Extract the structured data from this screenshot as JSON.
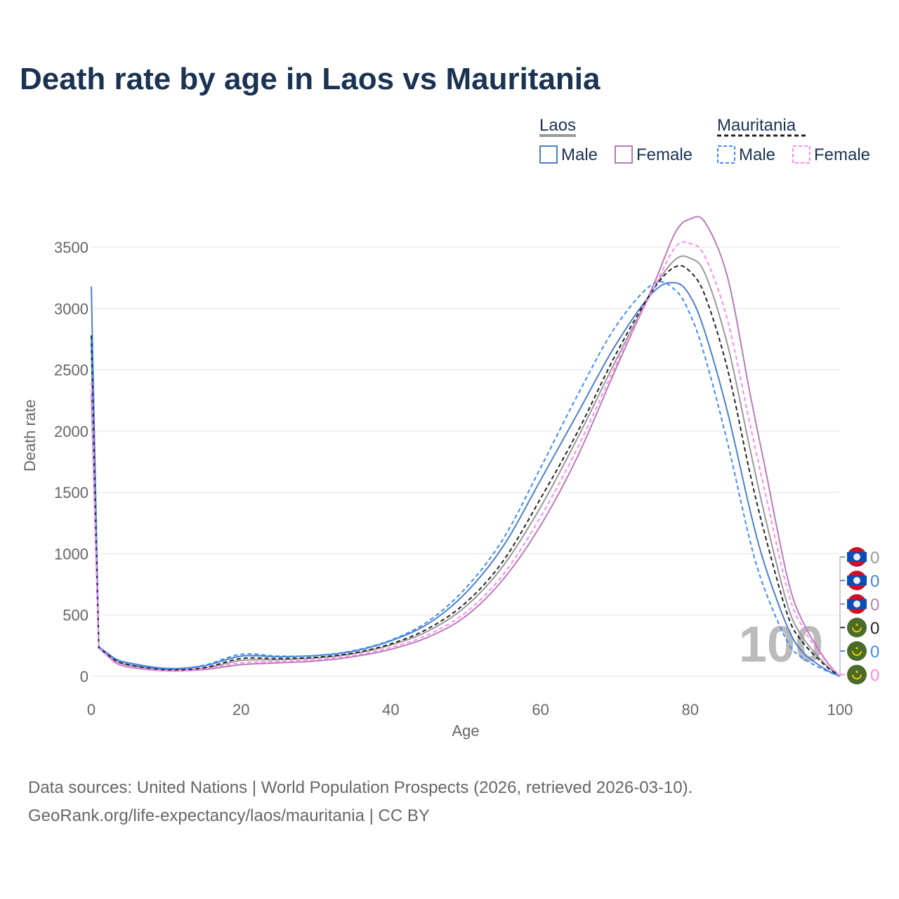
{
  "title": "Death rate by age in Laos vs Mauritania",
  "legend": {
    "groups": [
      {
        "name": "Laos",
        "items": [
          "Male",
          "Female"
        ]
      },
      {
        "name": "Mauritania",
        "items": [
          "Male",
          "Female"
        ]
      }
    ]
  },
  "source_line1": "Data sources: United Nations | World Population Prospects (2026, retrieved 2026-03-10).",
  "source_line2": "GeoRank.org/life-expectancy/laos/mauritania | CC BY",
  "current_age_label": "100",
  "chart_data": {
    "type": "line",
    "title": "Death rate by age in Laos vs Mauritania",
    "xlabel": "Age",
    "ylabel": "Death rate",
    "xlim": [
      0,
      100
    ],
    "ylim": [
      0,
      3700
    ],
    "xticks": [
      0,
      20,
      40,
      60,
      80,
      100
    ],
    "yticks": [
      0,
      500,
      1000,
      1500,
      2000,
      2500,
      3000,
      3500
    ],
    "grid": true,
    "x": [
      0,
      1,
      3,
      5,
      10,
      15,
      20,
      25,
      30,
      35,
      40,
      45,
      50,
      55,
      60,
      65,
      70,
      75,
      78,
      80,
      82,
      85,
      88,
      90,
      93,
      95,
      98,
      100
    ],
    "series": [
      {
        "name": "Laos",
        "color": "#999999",
        "dash": false,
        "flag": "laos",
        "end_label": "0",
        "values": [
          2700,
          235,
          135,
          90,
          55,
          65,
          130,
          135,
          150,
          185,
          255,
          370,
          570,
          900,
          1380,
          1950,
          2570,
          3150,
          3400,
          3410,
          3280,
          2700,
          1850,
          1300,
          580,
          320,
          100,
          0
        ]
      },
      {
        "name": "Laos Male",
        "color": "#4a7fd0",
        "dash": false,
        "flag": "laos",
        "end_label": "0",
        "values": [
          3180,
          240,
          150,
          110,
          65,
          85,
          165,
          160,
          170,
          205,
          290,
          430,
          680,
          1060,
          1600,
          2150,
          2700,
          3130,
          3210,
          3100,
          2800,
          2150,
          1350,
          900,
          400,
          200,
          60,
          0
        ]
      },
      {
        "name": "Laos Female",
        "color": "#b87bb8",
        "dash": false,
        "flag": "laos",
        "end_label": "0",
        "values": [
          2300,
          230,
          120,
          75,
          45,
          55,
          95,
          110,
          125,
          160,
          220,
          320,
          490,
          790,
          1230,
          1800,
          2500,
          3180,
          3620,
          3730,
          3700,
          3250,
          2300,
          1700,
          800,
          450,
          140,
          0
        ]
      },
      {
        "name": "Mauritania",
        "color": "#222222",
        "dash": true,
        "flag": "mauritania",
        "end_label": "0",
        "values": [
          2780,
          235,
          140,
          95,
          55,
          70,
          145,
          145,
          155,
          190,
          265,
          390,
          600,
          940,
          1450,
          2000,
          2620,
          3150,
          3340,
          3300,
          3100,
          2500,
          1650,
          1150,
          500,
          280,
          90,
          0
        ]
      },
      {
        "name": "Mauritania Male",
        "color": "#3d8bff",
        "dash": true,
        "flag": "mauritania",
        "end_label": "0",
        "values": [
          2750,
          240,
          150,
          105,
          60,
          90,
          180,
          165,
          170,
          210,
          295,
          450,
          720,
          1120,
          1700,
          2300,
          2850,
          3200,
          3150,
          2950,
          2600,
          1900,
          1100,
          700,
          280,
          150,
          50,
          0
        ]
      },
      {
        "name": "Mauritania Female",
        "color": "#ff88ee",
        "dash": true,
        "flag": "mauritania",
        "end_label": "0",
        "values": [
          2400,
          230,
          125,
          80,
          45,
          60,
          110,
          120,
          135,
          170,
          235,
          340,
          520,
          830,
          1300,
          1870,
          2530,
          3150,
          3500,
          3530,
          3420,
          2900,
          2050,
          1500,
          700,
          400,
          130,
          0
        ]
      }
    ]
  }
}
